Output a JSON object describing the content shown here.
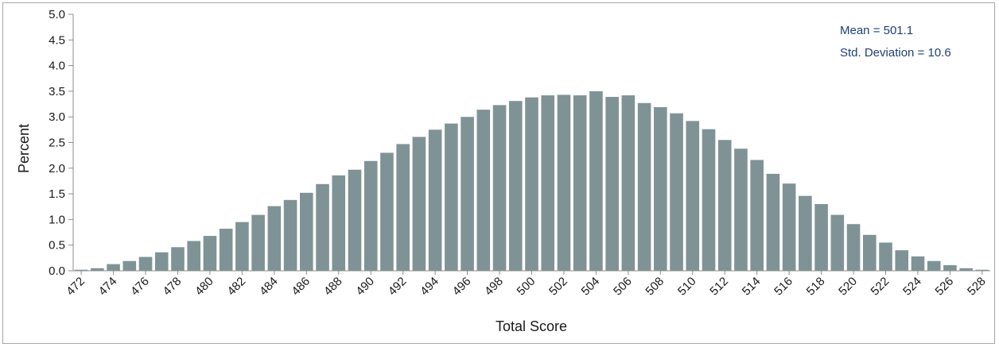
{
  "chart_data": {
    "type": "bar",
    "xlabel": "Total Score",
    "ylabel": "Percent",
    "ylim": [
      0,
      5
    ],
    "yticks": [
      "0.0",
      "0.5",
      "1.0",
      "1.5",
      "2.0",
      "2.5",
      "3.0",
      "3.5",
      "4.0",
      "4.5",
      "5.0"
    ],
    "categories": [
      "472",
      "473",
      "474",
      "475",
      "476",
      "477",
      "478",
      "479",
      "480",
      "481",
      "482",
      "483",
      "484",
      "485",
      "486",
      "487",
      "488",
      "489",
      "490",
      "491",
      "492",
      "493",
      "494",
      "495",
      "496",
      "497",
      "498",
      "499",
      "500",
      "501",
      "502",
      "503",
      "504",
      "505",
      "506",
      "507",
      "508",
      "509",
      "510",
      "511",
      "512",
      "513",
      "514",
      "515",
      "516",
      "517",
      "518",
      "519",
      "520",
      "521",
      "522",
      "523",
      "524",
      "525",
      "526",
      "527",
      "528"
    ],
    "xtick_labels": [
      "472",
      "474",
      "476",
      "478",
      "480",
      "482",
      "484",
      "486",
      "488",
      "490",
      "492",
      "494",
      "496",
      "498",
      "500",
      "502",
      "504",
      "506",
      "508",
      "510",
      "512",
      "514",
      "516",
      "518",
      "520",
      "522",
      "524",
      "526",
      "528"
    ],
    "values": [
      0.02,
      0.05,
      0.13,
      0.19,
      0.27,
      0.36,
      0.46,
      0.58,
      0.68,
      0.82,
      0.95,
      1.09,
      1.26,
      1.38,
      1.52,
      1.69,
      1.86,
      1.97,
      2.14,
      2.3,
      2.47,
      2.61,
      2.75,
      2.87,
      3.0,
      3.14,
      3.23,
      3.31,
      3.38,
      3.42,
      3.43,
      3.42,
      3.5,
      3.39,
      3.42,
      3.27,
      3.19,
      3.07,
      2.92,
      2.76,
      2.55,
      2.38,
      2.16,
      1.89,
      1.7,
      1.46,
      1.3,
      1.09,
      0.91,
      0.7,
      0.55,
      0.4,
      0.28,
      0.19,
      0.11,
      0.05,
      0.02
    ],
    "annotations": [
      "Mean = 501.1",
      "Std. Deviation = 10.6"
    ],
    "grid": false
  },
  "colors": {
    "bar": "#7f9396",
    "stats_text": "#1f3f75",
    "axis": "#8c8c8c"
  }
}
